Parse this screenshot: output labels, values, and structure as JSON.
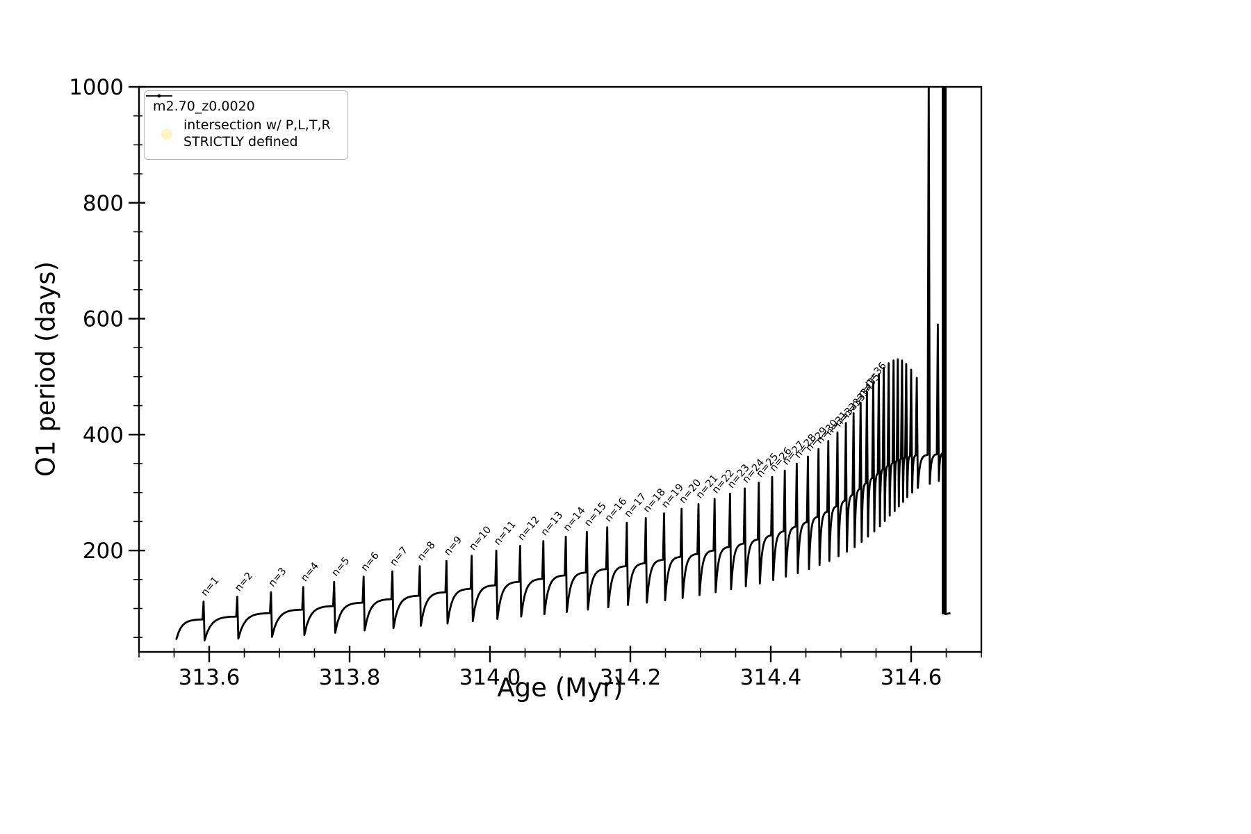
{
  "figure": {
    "background": "#ffffff"
  },
  "chart_data": {
    "type": "line",
    "title": "",
    "series_name": "m2.70_z0.0020",
    "xlabel": "Age (Myr)",
    "ylabel": "O1 period (days)",
    "xlim": [
      313.5,
      314.7
    ],
    "ylim": [
      25,
      1000
    ],
    "xticks": [
      313.6,
      313.8,
      314.0,
      314.2,
      314.4,
      314.6
    ],
    "xtick_labels": [
      "313.6",
      "313.8",
      "314.0",
      "314.2",
      "314.4",
      "314.6"
    ],
    "yticks": [
      200,
      400,
      600,
      800,
      1000
    ],
    "minor_xtick_step": 0.05,
    "minor_ytick_step": 50,
    "line_color": "#000000",
    "grid": false,
    "legend": {
      "position": "upper-left",
      "series1": {
        "label": "m2.70_z0.0020",
        "marker": "line-with-dot",
        "color": "#000000"
      },
      "series2": {
        "label_line1": "intersection w/ P,L,T,R",
        "label_line2": "STRICTLY defined",
        "marker": "circle",
        "color": "#fdf5c4"
      }
    },
    "start_point": [
      313.553,
      46
    ],
    "end_point": [
      314.656,
      92
    ],
    "spike_note": "each spike entry: [age_Myr, peak_days, pre_spike_baseline_days, post_spike_dip_days, label, optional_thick_px]",
    "spikes": [
      [
        313.592,
        112,
        81,
        45,
        "n=1"
      ],
      [
        313.64,
        120,
        86,
        48,
        "n=2"
      ],
      [
        313.688,
        128,
        92,
        51,
        "n=3"
      ],
      [
        313.734,
        137,
        98,
        54,
        "n=4"
      ],
      [
        313.778,
        146,
        104,
        58,
        "n=5"
      ],
      [
        313.82,
        155,
        110,
        62,
        "n=6"
      ],
      [
        313.861,
        164,
        116,
        66,
        "n=7"
      ],
      [
        313.9,
        173,
        122,
        70,
        "n=8"
      ],
      [
        313.938,
        182,
        128,
        74,
        "n=9"
      ],
      [
        313.974,
        191,
        134,
        78,
        "n=10"
      ],
      [
        314.009,
        200,
        140,
        82,
        "n=11"
      ],
      [
        314.043,
        208,
        146,
        86,
        "n=12"
      ],
      [
        314.076,
        216,
        151,
        90,
        "n=13"
      ],
      [
        314.108,
        224,
        157,
        94,
        "n=14"
      ],
      [
        314.138,
        232,
        162,
        98,
        "n=15"
      ],
      [
        314.167,
        240,
        168,
        102,
        "n=16"
      ],
      [
        314.195,
        248,
        173,
        106,
        "n=17"
      ],
      [
        314.222,
        256,
        178,
        110,
        "n=18"
      ],
      [
        314.248,
        264,
        184,
        114,
        "n=19"
      ],
      [
        314.273,
        272,
        189,
        118,
        "n=20"
      ],
      [
        314.297,
        280,
        194,
        123,
        "n=21"
      ],
      [
        314.32,
        289,
        200,
        128,
        "n=22"
      ],
      [
        314.342,
        298,
        206,
        133,
        "n=23"
      ],
      [
        314.363,
        307,
        212,
        138,
        "n=24"
      ],
      [
        314.383,
        317,
        219,
        143,
        "n=25"
      ],
      [
        314.402,
        327,
        226,
        149,
        "n=26"
      ],
      [
        314.42,
        338,
        233,
        155,
        "n=27"
      ],
      [
        314.437,
        350,
        241,
        161,
        "n=28"
      ],
      [
        314.453,
        362,
        249,
        168,
        "n=29"
      ],
      [
        314.468,
        375,
        258,
        175,
        "n=30"
      ],
      [
        314.482,
        389,
        267,
        182,
        "n=31"
      ],
      [
        314.495,
        404,
        276,
        190,
        "n=32"
      ],
      [
        314.507,
        420,
        286,
        198,
        "n=33"
      ],
      [
        314.518,
        437,
        296,
        206,
        "n=34"
      ],
      [
        314.528,
        455,
        306,
        215,
        "n=35"
      ],
      [
        314.537,
        474,
        316,
        224,
        "n=36"
      ],
      [
        314.546,
        490,
        325,
        233,
        null
      ],
      [
        314.554,
        504,
        333,
        242,
        null
      ],
      [
        314.561,
        515,
        340,
        251,
        null
      ],
      [
        314.568,
        523,
        346,
        260,
        null
      ],
      [
        314.575,
        528,
        351,
        268,
        null
      ],
      [
        314.581,
        530,
        355,
        276,
        null
      ],
      [
        314.587,
        528,
        358,
        284,
        null
      ],
      [
        314.593,
        522,
        361,
        292,
        null
      ],
      [
        314.6,
        512,
        363,
        300,
        null
      ],
      [
        314.608,
        498,
        364,
        308,
        null
      ],
      [
        314.625,
        1020,
        365,
        315,
        null
      ],
      [
        314.638,
        590,
        366,
        320,
        null
      ],
      [
        314.647,
        1020,
        368,
        90,
        null,
        7
      ]
    ]
  }
}
